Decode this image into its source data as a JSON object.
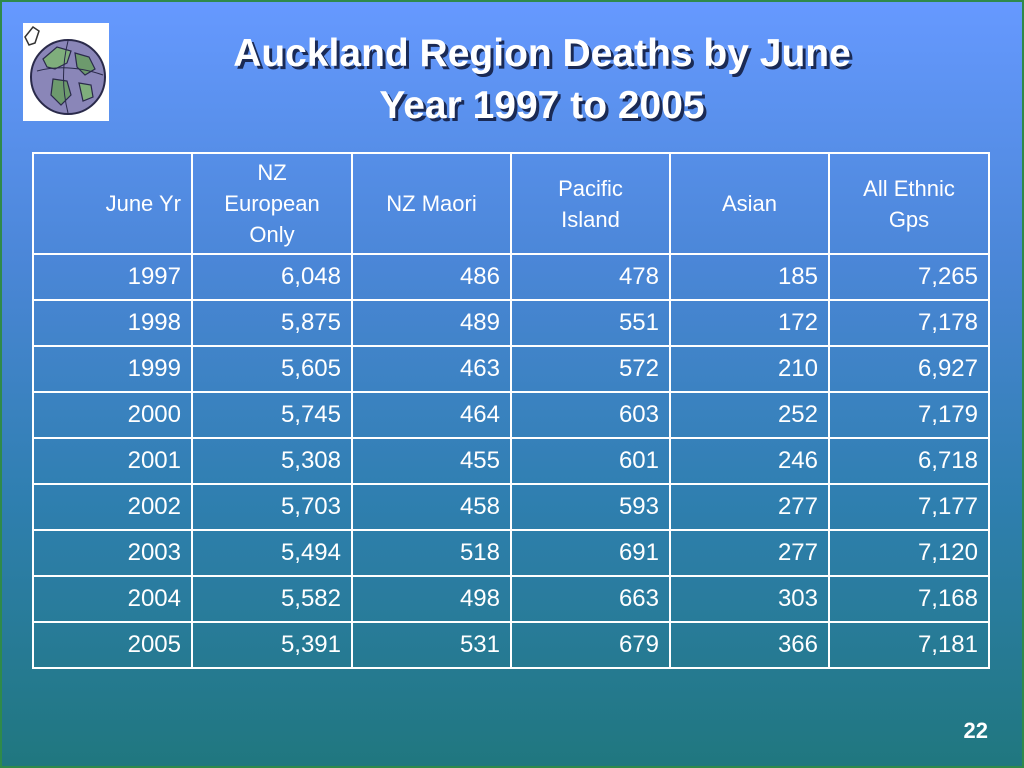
{
  "slide": {
    "title_line1": "Auckland Region Deaths by June",
    "title_line2": "Year 1997 to 2005",
    "page_number": "22",
    "logo_icon": "globe-map-icon"
  },
  "table": {
    "headers": [
      [
        "June Yr"
      ],
      [
        "NZ",
        "European",
        "Only"
      ],
      [
        "NZ Maori"
      ],
      [
        "Pacific",
        "Island"
      ],
      [
        "Asian"
      ],
      [
        "All Ethnic",
        "Gps"
      ]
    ],
    "rows": [
      [
        "1997",
        "6,048",
        "486",
        "478",
        "185",
        "7,265"
      ],
      [
        "1998",
        "5,875",
        "489",
        "551",
        "172",
        "7,178"
      ],
      [
        "1999",
        "5,605",
        "463",
        "572",
        "210",
        "6,927"
      ],
      [
        "2000",
        "5,745",
        "464",
        "603",
        "252",
        "7,179"
      ],
      [
        "2001",
        "5,308",
        "455",
        "601",
        "246",
        "6,718"
      ],
      [
        "2002",
        "5,703",
        "458",
        "593",
        "277",
        "7,177"
      ],
      [
        "2003",
        "5,494",
        "518",
        "691",
        "277",
        "7,120"
      ],
      [
        "2004",
        "5,582",
        "498",
        "663",
        "303",
        "7,168"
      ],
      [
        "2005",
        "5,391",
        "531",
        "679",
        "366",
        "7,181"
      ]
    ]
  }
}
